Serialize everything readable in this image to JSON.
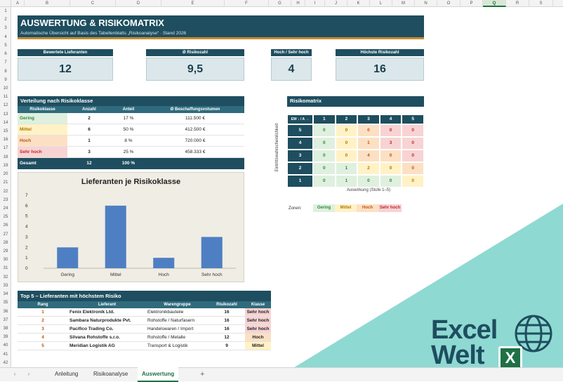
{
  "columns": [
    "A",
    "B",
    "C",
    "D",
    "E",
    "F",
    "G",
    "H",
    "I",
    "J",
    "K",
    "L",
    "M",
    "N",
    "O",
    "P",
    "Q",
    "R",
    "S"
  ],
  "selected_column": "Q",
  "rows": [
    "1",
    "2",
    "3",
    "4",
    "5",
    "6",
    "7",
    "8",
    "9",
    "10",
    "11",
    "12",
    "13",
    "14",
    "15",
    "16",
    "17",
    "18",
    "19",
    "20",
    "21",
    "22",
    "23",
    "24",
    "25",
    "26",
    "27",
    "28",
    "29",
    "30",
    "31",
    "32",
    "33",
    "34",
    "35",
    "36",
    "37",
    "38",
    "39",
    "40",
    "41",
    "42"
  ],
  "header": {
    "title": "AUSWERTUNG & RISIKOMATRIX",
    "subtitle": "Automatische Übersicht auf Basis des Tabellenblatts „Risikoanalyse“ · Stand 2026"
  },
  "kpis": [
    {
      "label": "Bewertete Lieferanten",
      "value": "12"
    },
    {
      "label": "Ø Risikozahl",
      "value": "9,5"
    },
    {
      "label": "Hoch / Sehr hoch",
      "value": "4"
    },
    {
      "label": "Höchste Risikozahl",
      "value": "16"
    }
  ],
  "verteilung": {
    "title": "Verteilung nach Risikoklasse",
    "headers": [
      "Risikoklasse",
      "Anzahl",
      "Anteil",
      "Ø Beschaffungsvolumen"
    ],
    "rows": [
      {
        "klasse": "Gering",
        "anzahl": "2",
        "anteil": "17 %",
        "volumen": "111.500 €"
      },
      {
        "klasse": "Mittel",
        "anzahl": "6",
        "anteil": "50 %",
        "volumen": "412.500 €"
      },
      {
        "klasse": "Hoch",
        "anzahl": "1",
        "anteil": "8 %",
        "volumen": "720.000 €"
      },
      {
        "klasse": "Sehr hoch",
        "anzahl": "3",
        "anteil": "25 %",
        "volumen": "458.333 €"
      }
    ],
    "total": {
      "label": "Gesamt",
      "anzahl": "12",
      "anteil": "100 %"
    }
  },
  "chart_data": {
    "type": "bar",
    "title": "Lieferanten je Risikoklasse",
    "categories": [
      "Gering",
      "Mittel",
      "Hoch",
      "Sehr hoch"
    ],
    "values": [
      2,
      6,
      1,
      3
    ],
    "ylim": [
      0,
      7
    ],
    "yticks": [
      "0",
      "1",
      "2",
      "3",
      "4",
      "5",
      "6",
      "7"
    ],
    "grid": false,
    "color": "#4f7fc3"
  },
  "matrix": {
    "title": "Risikomatrix",
    "corner": "EW ↓ / A →",
    "cols": [
      "1",
      "2",
      "3",
      "4",
      "5"
    ],
    "ylabel": "Eintrittswahrscheinlichkeit",
    "xlabel": "Auswirkung (Stufe 1–5)",
    "rows": [
      {
        "ew": "5",
        "cells": [
          "0",
          "0",
          "0",
          "0",
          "0"
        ],
        "zones": [
          "g",
          "y",
          "o",
          "r",
          "r"
        ]
      },
      {
        "ew": "4",
        "cells": [
          "0",
          "0",
          "1",
          "3",
          "0"
        ],
        "zones": [
          "g",
          "y",
          "o",
          "r",
          "r"
        ]
      },
      {
        "ew": "3",
        "cells": [
          "0",
          "0",
          "4",
          "0",
          "0"
        ],
        "zones": [
          "g",
          "y",
          "o",
          "o",
          "r"
        ]
      },
      {
        "ew": "2",
        "cells": [
          "0",
          "1",
          "2",
          "0",
          "0"
        ],
        "zones": [
          "g",
          "g",
          "y",
          "y",
          "o"
        ]
      },
      {
        "ew": "1",
        "cells": [
          "0",
          "1",
          "0",
          "0",
          "0"
        ],
        "zones": [
          "g",
          "g",
          "g",
          "g",
          "y"
        ]
      }
    ],
    "zones_label": "Zonen:",
    "zones": [
      "Gering",
      "Mittel",
      "Hoch",
      "Sehr hoch"
    ]
  },
  "top5": {
    "title": "Top 5 – Lieferanten mit höchstem Risiko",
    "headers": [
      "Rang",
      "Lieferant",
      "Warengruppe",
      "Risikozahl",
      "Klasse"
    ],
    "rows": [
      {
        "rang": "1",
        "lieferant": "Fenix Elektronik Ltd.",
        "gruppe": "Elektronikbauteile",
        "zahl": "16",
        "klasse": "Sehr hoch"
      },
      {
        "rang": "2",
        "lieferant": "Sambara Naturprodukte Pvt.",
        "gruppe": "Rohstoffe / Naturfasern",
        "zahl": "16",
        "klasse": "Sehr hoch"
      },
      {
        "rang": "3",
        "lieferant": "Pacifico Trading Co.",
        "gruppe": "Handelswaren / Import",
        "zahl": "16",
        "klasse": "Sehr hoch"
      },
      {
        "rang": "4",
        "lieferant": "Silvana Rohstoffe s.r.o.",
        "gruppe": "Rohstoffe / Metalle",
        "zahl": "12",
        "klasse": "Hoch"
      },
      {
        "rang": "5",
        "lieferant": "Meridian Logistik AG",
        "gruppe": "Transport & Logistik",
        "zahl": "9",
        "klasse": "Mittel"
      }
    ]
  },
  "tabs": [
    "Anleitung",
    "Risikoanalyse",
    "Auswertung"
  ],
  "active_tab": "Auswertung",
  "add_sheet": "+",
  "nav": {
    "prev": "‹",
    "next": "›"
  },
  "logo": {
    "word1": "Excel",
    "word2": "Welt",
    "badge": "X"
  },
  "colors": {
    "dark": "#1e4e5f",
    "teal": "#8ed9d3",
    "bar": "#4f7fc3"
  }
}
